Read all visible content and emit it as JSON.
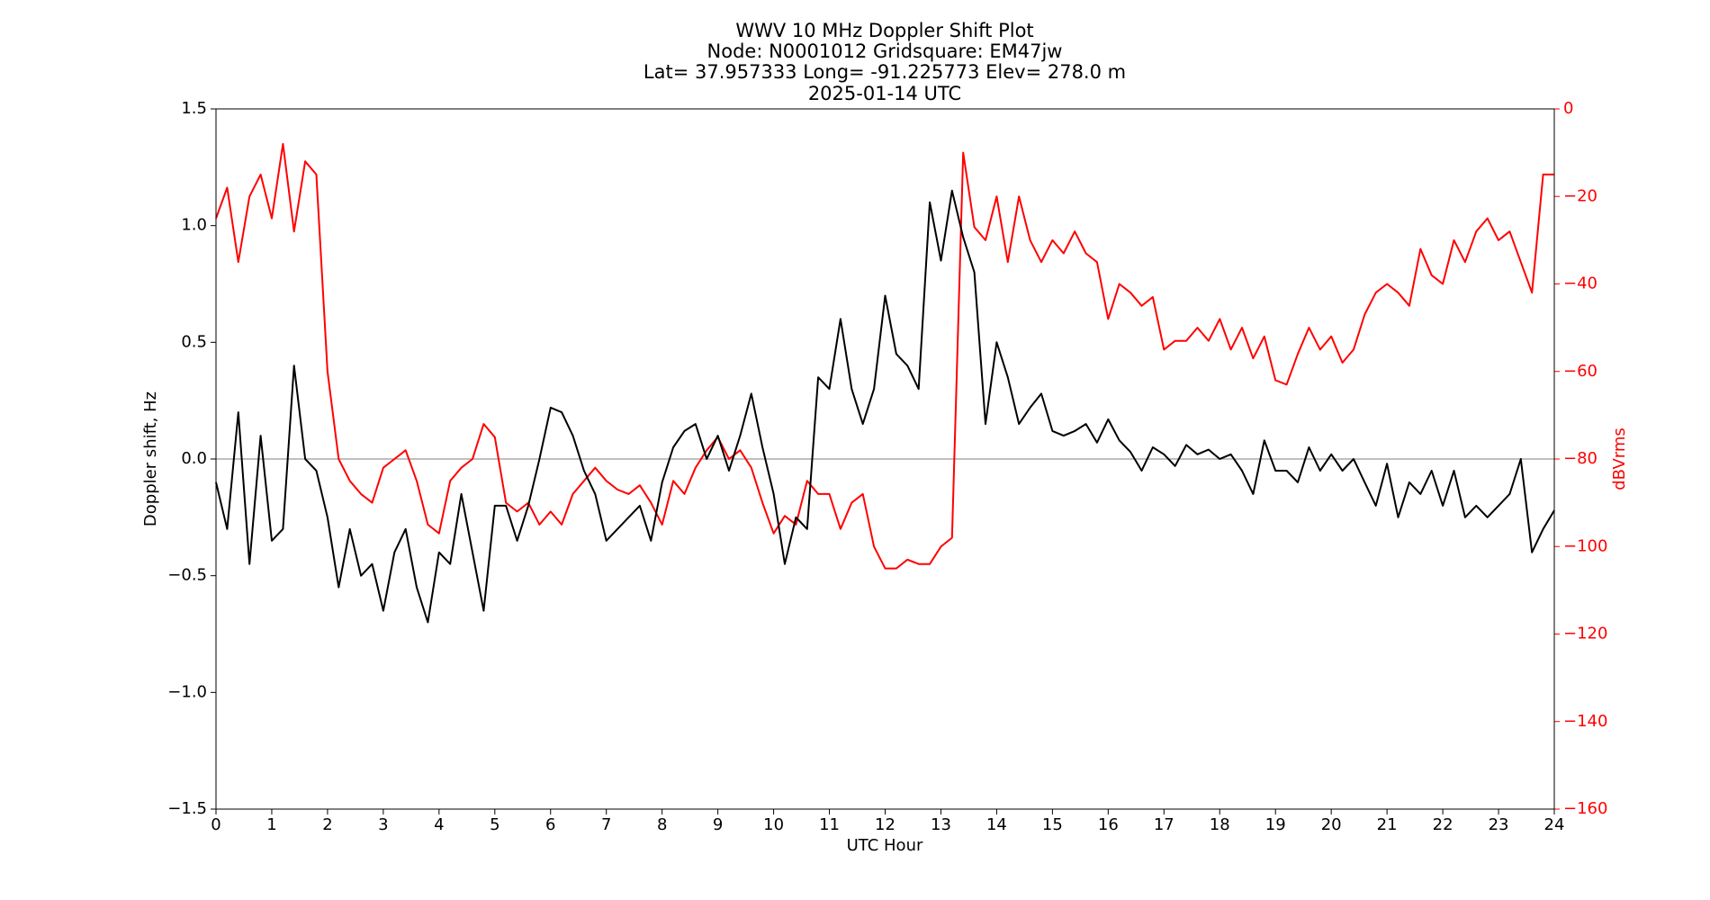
{
  "chart_data": {
    "type": "line",
    "title": [
      "WWV 10 MHz Doppler Shift Plot",
      "Node:  N0001012     Gridsquare:  EM47jw",
      "Lat= 37.957333    Long= -91.225773    Elev= 278.0 m",
      "2025-01-14  UTC"
    ],
    "xlabel": "UTC Hour",
    "ylabel": "Doppler shift, Hz",
    "y2label": "dBVrms",
    "xlim": [
      0,
      24
    ],
    "xticks": [
      0,
      1,
      2,
      3,
      4,
      5,
      6,
      7,
      8,
      9,
      10,
      11,
      12,
      13,
      14,
      15,
      16,
      17,
      18,
      19,
      20,
      21,
      22,
      23,
      24
    ],
    "ylim": [
      -1.5,
      1.5
    ],
    "yticks": [
      {
        "value": -1.5,
        "label": "−1.5"
      },
      {
        "value": -1.0,
        "label": "−1.0"
      },
      {
        "value": -0.5,
        "label": "−0.5"
      },
      {
        "value": 0,
        "label": "0.0"
      },
      0.5,
      {
        "value": 1.0,
        "label": "1.0"
      },
      1.5
    ],
    "y2lim": [
      -160,
      0
    ],
    "y2ticks": [
      {
        "value": -160,
        "label": "−160"
      },
      {
        "value": -140,
        "label": "−140"
      },
      {
        "value": -120,
        "label": "−120"
      },
      {
        "value": -100,
        "label": "−100"
      },
      {
        "value": -80,
        "label": "−80"
      },
      {
        "value": -60,
        "label": "−60"
      },
      {
        "value": -40,
        "label": "−40"
      },
      {
        "value": -20,
        "label": "−20"
      },
      0
    ],
    "y2color": "#ff0000",
    "hline": 0,
    "x": [
      0,
      0.2,
      0.4,
      0.6,
      0.8,
      1,
      1.2,
      1.4,
      1.6,
      1.8,
      2,
      2.2,
      2.4,
      2.6,
      2.8,
      3,
      3.2,
      3.4,
      3.6,
      3.8,
      4,
      4.2,
      4.4,
      4.6,
      4.8,
      5,
      5.2,
      5.4,
      5.6,
      5.8,
      6,
      6.2,
      6.4,
      6.6,
      6.8,
      7,
      7.2,
      7.4,
      7.6,
      7.8,
      8,
      8.2,
      8.4,
      8.6,
      8.8,
      9,
      9.2,
      9.4,
      9.6,
      9.8,
      10,
      10.2,
      10.4,
      10.6,
      10.8,
      11,
      11.2,
      11.4,
      11.6,
      11.8,
      12,
      12.2,
      12.4,
      12.6,
      12.8,
      13,
      13.2,
      13.4,
      13.6,
      13.8,
      14,
      14.2,
      14.4,
      14.6,
      14.8,
      15,
      15.2,
      15.4,
      15.6,
      15.8,
      16,
      16.2,
      16.4,
      16.6,
      16.8,
      17,
      17.2,
      17.4,
      17.6,
      17.8,
      18,
      18.2,
      18.4,
      18.6,
      18.8,
      19,
      19.2,
      19.4,
      19.6,
      19.8,
      20,
      20.2,
      20.4,
      20.6,
      20.8,
      21,
      21.2,
      21.4,
      21.6,
      21.8,
      22,
      22.2,
      22.4,
      22.6,
      22.8,
      23,
      23.2,
      23.4,
      23.6,
      23.8,
      24
    ],
    "series": [
      {
        "color": "#000000",
        "axis": "y",
        "values": [
          -0.1,
          -0.3,
          0.2,
          -0.45,
          0.1,
          -0.35,
          -0.3,
          0.4,
          0.0,
          -0.05,
          -0.25,
          -0.55,
          -0.3,
          -0.5,
          -0.45,
          -0.65,
          -0.4,
          -0.3,
          -0.55,
          -0.7,
          -0.4,
          -0.45,
          -0.15,
          -0.4,
          -0.65,
          -0.2,
          -0.2,
          -0.35,
          -0.2,
          0.0,
          0.22,
          0.2,
          0.1,
          -0.05,
          -0.15,
          -0.35,
          -0.3,
          -0.25,
          -0.2,
          -0.35,
          -0.1,
          0.05,
          0.12,
          0.15,
          0.0,
          0.1,
          -0.05,
          0.1,
          0.28,
          0.05,
          -0.15,
          -0.45,
          -0.25,
          -0.3,
          0.35,
          0.3,
          0.6,
          0.3,
          0.15,
          0.3,
          0.7,
          0.45,
          0.4,
          0.3,
          1.1,
          0.85,
          1.15,
          0.95,
          0.8,
          0.15,
          0.5,
          0.35,
          0.15,
          0.22,
          0.28,
          0.12,
          0.1,
          0.12,
          0.15,
          0.07,
          0.17,
          0.08,
          0.03,
          -0.05,
          0.05,
          0.02,
          -0.03,
          0.06,
          0.02,
          0.04,
          0.0,
          0.02,
          -0.05,
          -0.15,
          0.08,
          -0.05,
          -0.05,
          -0.1,
          0.05,
          -0.05,
          0.02,
          -0.05,
          0.0,
          -0.1,
          -0.2,
          -0.02,
          -0.25,
          -0.1,
          -0.15,
          -0.05,
          -0.2,
          -0.05,
          -0.25,
          -0.2,
          -0.25,
          -0.2,
          -0.15,
          0.0,
          -0.4,
          -0.3,
          -0.22
        ]
      },
      {
        "color": "#ff0000",
        "axis": "y2",
        "values": [
          -25,
          -18,
          -35,
          -20,
          -15,
          -25,
          -8,
          -28,
          -12,
          -15,
          -60,
          -80,
          -85,
          -88,
          -90,
          -82,
          -80,
          -78,
          -85,
          -95,
          -97,
          -85,
          -82,
          -80,
          -72,
          -75,
          -90,
          -92,
          -90,
          -95,
          -92,
          -95,
          -88,
          -85,
          -82,
          -85,
          -87,
          -88,
          -86,
          -90,
          -95,
          -85,
          -88,
          -82,
          -78,
          -75,
          -80,
          -78,
          -82,
          -90,
          -97,
          -93,
          -95,
          -85,
          -88,
          -88,
          -96,
          -90,
          -88,
          -100,
          -105,
          -105,
          -103,
          -104,
          -104,
          -100,
          -98,
          -10,
          -27,
          -30,
          -20,
          -35,
          -20,
          -30,
          -35,
          -30,
          -33,
          -28,
          -33,
          -35,
          -48,
          -40,
          -42,
          -45,
          -43,
          -55,
          -53,
          -53,
          -50,
          -53,
          -48,
          -55,
          -50,
          -57,
          -52,
          -62,
          -63,
          -56,
          -50,
          -55,
          -52,
          -58,
          -55,
          -47,
          -42,
          -40,
          -42,
          -45,
          -32,
          -38,
          -40,
          -30,
          -35,
          -28,
          -25,
          -30,
          -28,
          -35,
          -42,
          -15,
          -15
        ]
      }
    ]
  }
}
